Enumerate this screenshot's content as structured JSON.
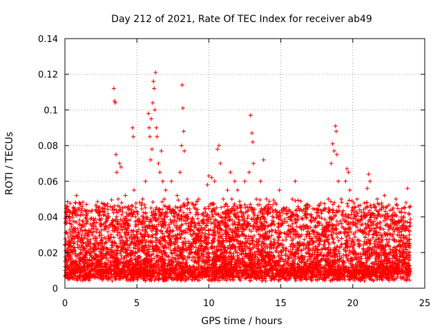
{
  "chart_data": {
    "type": "scatter",
    "title": "Day 212 of 2021, Rate Of TEC Index for receiver ab49",
    "xlabel": "GPS time / hours",
    "ylabel": "ROTI / TECUs",
    "xlim": [
      0,
      25
    ],
    "ylim": [
      0,
      0.14
    ],
    "xticks": [
      0,
      5,
      10,
      15,
      20,
      25
    ],
    "xtick_labels": [
      "0",
      "5",
      "10",
      "15",
      "20",
      "25"
    ],
    "yticks": [
      0,
      0.02,
      0.04,
      0.06,
      0.08,
      0.1,
      0.12,
      0.14
    ],
    "ytick_labels": [
      "0",
      "0.02",
      "0.04",
      "0.06",
      "0.08",
      "0.1",
      "0.12",
      "0.14"
    ],
    "grid": true,
    "marker": "plus",
    "color": "#ff0000",
    "series": [
      {
        "name": "ROTI",
        "points": [
          [
            0.1,
            0.012
          ],
          [
            0.2,
            0.025
          ],
          [
            0.3,
            0.04
          ],
          [
            0.4,
            0.018
          ],
          [
            0.5,
            0.032
          ],
          [
            0.6,
            0.045
          ],
          [
            0.7,
            0.015
          ],
          [
            0.8,
            0.052
          ],
          [
            0.9,
            0.028
          ],
          [
            1.0,
            0.048
          ],
          [
            1.1,
            0.02
          ],
          [
            1.2,
            0.035
          ],
          [
            1.3,
            0.012
          ],
          [
            1.5,
            0.047
          ],
          [
            1.6,
            0.03
          ],
          [
            1.8,
            0.022
          ],
          [
            2.0,
            0.038
          ],
          [
            2.2,
            0.016
          ],
          [
            2.4,
            0.043
          ],
          [
            2.6,
            0.025
          ],
          [
            2.8,
            0.034
          ],
          [
            3.0,
            0.019
          ],
          [
            3.2,
            0.03
          ],
          [
            3.4,
            0.112
          ],
          [
            3.45,
            0.105
          ],
          [
            3.5,
            0.104
          ],
          [
            3.55,
            0.075
          ],
          [
            3.6,
            0.065
          ],
          [
            3.7,
            0.05
          ],
          [
            3.8,
            0.07
          ],
          [
            3.9,
            0.068
          ],
          [
            4.0,
            0.045
          ],
          [
            4.2,
            0.052
          ],
          [
            4.4,
            0.03
          ],
          [
            4.6,
            0.042
          ],
          [
            4.7,
            0.09
          ],
          [
            4.75,
            0.085
          ],
          [
            4.8,
            0.055
          ],
          [
            5.0,
            0.038
          ],
          [
            5.2,
            0.048
          ],
          [
            5.4,
            0.05
          ],
          [
            5.6,
            0.06
          ],
          [
            5.8,
            0.098
          ],
          [
            5.85,
            0.09
          ],
          [
            5.9,
            0.085
          ],
          [
            5.95,
            0.072
          ],
          [
            6.0,
            0.095
          ],
          [
            6.05,
            0.078
          ],
          [
            6.1,
            0.104
          ],
          [
            6.15,
            0.116
          ],
          [
            6.2,
            0.112
          ],
          [
            6.25,
            0.1
          ],
          [
            6.3,
            0.121
          ],
          [
            6.35,
            0.09
          ],
          [
            6.4,
            0.085
          ],
          [
            6.5,
            0.07
          ],
          [
            6.6,
            0.065
          ],
          [
            6.7,
            0.077
          ],
          [
            6.8,
            0.06
          ],
          [
            6.9,
            0.05
          ],
          [
            7.0,
            0.055
          ],
          [
            7.2,
            0.045
          ],
          [
            7.4,
            0.06
          ],
          [
            7.6,
            0.04
          ],
          [
            7.8,
            0.052
          ],
          [
            8.0,
            0.065
          ],
          [
            8.1,
            0.08
          ],
          [
            8.15,
            0.114
          ],
          [
            8.2,
            0.101
          ],
          [
            8.25,
            0.088
          ],
          [
            8.3,
            0.077
          ],
          [
            8.5,
            0.05
          ],
          [
            8.8,
            0.035
          ],
          [
            9.0,
            0.045
          ],
          [
            9.3,
            0.05
          ],
          [
            9.6,
            0.042
          ],
          [
            9.9,
            0.058
          ],
          [
            10.0,
            0.063
          ],
          [
            10.2,
            0.062
          ],
          [
            10.4,
            0.06
          ],
          [
            10.6,
            0.078
          ],
          [
            10.7,
            0.08
          ],
          [
            10.8,
            0.07
          ],
          [
            11.0,
            0.05
          ],
          [
            11.3,
            0.055
          ],
          [
            11.5,
            0.065
          ],
          [
            11.6,
            0.05
          ],
          [
            11.8,
            0.06
          ],
          [
            12.0,
            0.055
          ],
          [
            12.2,
            0.045
          ],
          [
            12.5,
            0.06
          ],
          [
            12.8,
            0.065
          ],
          [
            12.9,
            0.097
          ],
          [
            13.0,
            0.087
          ],
          [
            13.05,
            0.082
          ],
          [
            13.1,
            0.07
          ],
          [
            13.3,
            0.05
          ],
          [
            13.6,
            0.06
          ],
          [
            13.8,
            0.072
          ],
          [
            14.0,
            0.05
          ],
          [
            14.3,
            0.045
          ],
          [
            14.6,
            0.048
          ],
          [
            14.9,
            0.055
          ],
          [
            15.2,
            0.045
          ],
          [
            15.5,
            0.03
          ],
          [
            15.8,
            0.05
          ],
          [
            16.0,
            0.06
          ],
          [
            16.2,
            0.04
          ],
          [
            16.5,
            0.025
          ],
          [
            16.8,
            0.03
          ],
          [
            17.0,
            0.028
          ],
          [
            17.4,
            0.035
          ],
          [
            17.7,
            0.03
          ],
          [
            18.0,
            0.03
          ],
          [
            18.3,
            0.05
          ],
          [
            18.5,
            0.07
          ],
          [
            18.6,
            0.081
          ],
          [
            18.7,
            0.077
          ],
          [
            18.8,
            0.091
          ],
          [
            18.85,
            0.088
          ],
          [
            18.9,
            0.075
          ],
          [
            19.0,
            0.06
          ],
          [
            19.2,
            0.05
          ],
          [
            19.5,
            0.06
          ],
          [
            19.6,
            0.067
          ],
          [
            19.7,
            0.065
          ],
          [
            19.8,
            0.055
          ],
          [
            20.0,
            0.045
          ],
          [
            20.3,
            0.05
          ],
          [
            20.6,
            0.04
          ],
          [
            20.9,
            0.045
          ],
          [
            21.0,
            0.056
          ],
          [
            21.1,
            0.064
          ],
          [
            21.2,
            0.06
          ],
          [
            21.4,
            0.042
          ],
          [
            21.7,
            0.05
          ],
          [
            22.0,
            0.045
          ],
          [
            22.2,
            0.052
          ],
          [
            22.5,
            0.04
          ],
          [
            22.8,
            0.045
          ],
          [
            23.0,
            0.05
          ],
          [
            23.2,
            0.038
          ],
          [
            23.5,
            0.04
          ],
          [
            23.7,
            0.048
          ],
          [
            23.8,
            0.056
          ],
          [
            23.9,
            0.042
          ],
          [
            24.0,
            0.035
          ]
        ]
      }
    ]
  }
}
